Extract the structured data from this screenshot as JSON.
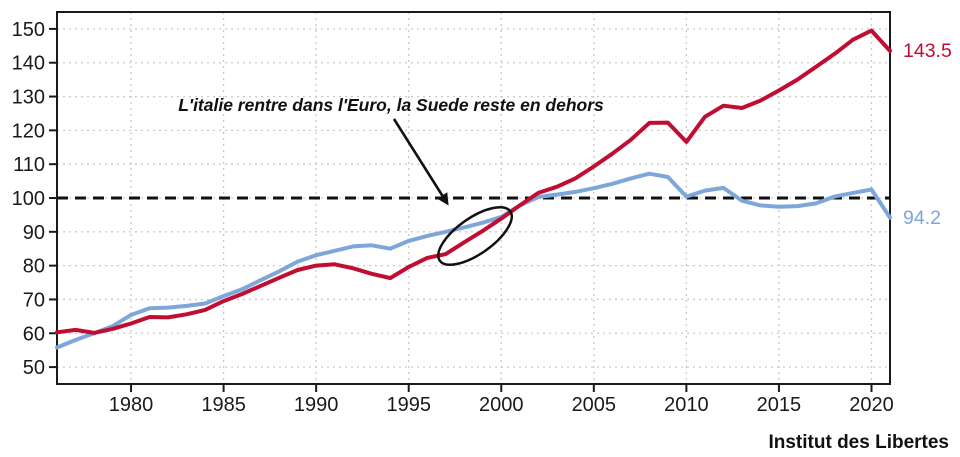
{
  "chart_data": {
    "type": "line",
    "title": "",
    "x_years": [
      1976,
      1977,
      1978,
      1979,
      1980,
      1981,
      1982,
      1983,
      1984,
      1985,
      1986,
      1987,
      1988,
      1989,
      1990,
      1991,
      1992,
      1993,
      1994,
      1995,
      1996,
      1997,
      1998,
      1999,
      2000,
      2001,
      2002,
      2003,
      2004,
      2005,
      2006,
      2007,
      2008,
      2009,
      2010,
      2011,
      2012,
      2013,
      2014,
      2015,
      2016,
      2017,
      2018,
      2019,
      2020,
      2021
    ],
    "series": [
      {
        "name": "Italie",
        "color": "#c00d31",
        "end_label": "143.5",
        "values": [
          60.3,
          61.0,
          60.1,
          61.3,
          62.9,
          64.8,
          64.7,
          65.6,
          66.9,
          69.5,
          71.6,
          74.0,
          76.4,
          78.7,
          80.0,
          80.4,
          79.2,
          77.6,
          76.3,
          79.6,
          82.3,
          83.4,
          86.9,
          90.3,
          93.9,
          97.8,
          101.5,
          103.3,
          105.8,
          109.3,
          113.1,
          117.2,
          122.2,
          122.3,
          116.6,
          124.0,
          127.3,
          126.6,
          128.8,
          131.8,
          135.0,
          138.8,
          142.6,
          146.8,
          149.5,
          143.5
        ]
      },
      {
        "name": "Suede",
        "color": "#7ea6d8",
        "end_label": "94.2",
        "values": [
          55.8,
          58.0,
          60.0,
          62.1,
          65.4,
          67.4,
          67.6,
          68.1,
          68.8,
          71.0,
          73.0,
          75.7,
          78.3,
          81.2,
          83.1,
          84.4,
          85.7,
          86.0,
          85.0,
          87.3,
          88.8,
          90.0,
          91.3,
          92.7,
          94.4,
          97.8,
          100.3,
          101.0,
          101.8,
          102.9,
          104.2,
          105.8,
          107.2,
          106.2,
          100.4,
          102.2,
          103.0,
          99.2,
          97.8,
          97.4,
          97.6,
          98.4,
          100.4,
          101.5,
          102.5,
          94.2
        ]
      }
    ],
    "reference_line": {
      "value": 100,
      "style": "black-dashed"
    },
    "annotation": {
      "text": "L'italie rentre dans l'Euro, la Suede reste en dehors"
    },
    "x_ticks": [
      1980,
      1985,
      1990,
      1995,
      2000,
      2005,
      2010,
      2015,
      2020
    ],
    "y_ticks": [
      50,
      60,
      70,
      80,
      90,
      100,
      110,
      120,
      130,
      140,
      150
    ],
    "xlim": [
      1976,
      2021
    ],
    "ylim": [
      45,
      155
    ],
    "grid": "dashed",
    "legend": "none",
    "credit": "Institut des Libertes"
  },
  "colors": {
    "italie_red": "#c00d31",
    "suede_blue": "#7ea6d8",
    "grid": "#c9c9c9",
    "axis": "#000000",
    "text": "#1a1a1a"
  }
}
